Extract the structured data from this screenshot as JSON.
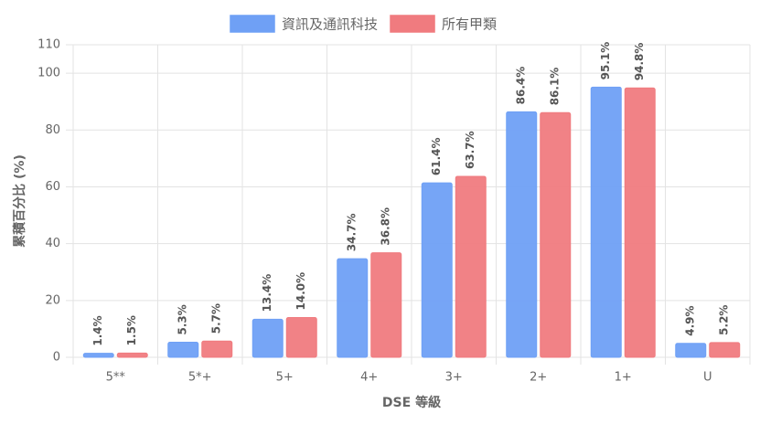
{
  "chart_data": {
    "type": "bar",
    "categories": [
      "5**",
      "5*+",
      "5+",
      "4+",
      "3+",
      "2+",
      "1+",
      "U"
    ],
    "series": [
      {
        "name": "資訊及通訊科技",
        "color": "#6fa0f5",
        "values": [
          1.4,
          5.3,
          13.4,
          34.7,
          61.4,
          86.4,
          95.1,
          4.9
        ],
        "value_labels": [
          "1.4%",
          "5.3%",
          "13.4%",
          "34.7%",
          "61.4%",
          "86.4%",
          "95.1%",
          "4.9%"
        ]
      },
      {
        "name": "所有甲類",
        "color": "#f07b7f",
        "values": [
          1.5,
          5.7,
          14.0,
          36.8,
          63.7,
          86.1,
          94.8,
          5.2
        ],
        "value_labels": [
          "1.5%",
          "5.7%",
          "14.0%",
          "36.8%",
          "63.7%",
          "86.1%",
          "94.8%",
          "5.2%"
        ]
      }
    ],
    "x_label": "DSE 等級",
    "y_label": "累積百分比 (%)",
    "ylim": [
      0,
      110
    ],
    "yticks": [
      0,
      20,
      40,
      60,
      80,
      100,
      110
    ],
    "grid": true,
    "legend": "top"
  }
}
